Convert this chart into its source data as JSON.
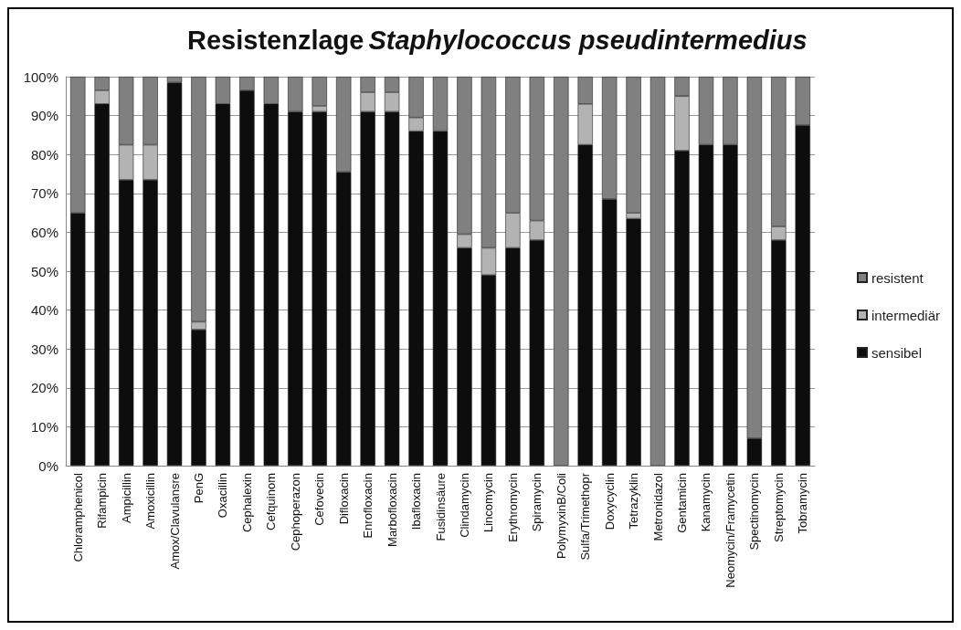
{
  "chart_data": {
    "type": "bar",
    "title": "Resistenzlage Staphylococcus pseudintermedius",
    "stacked": true,
    "categories": [
      "Chloramphenicol",
      "Rifampicin",
      "Ampicillin",
      "Amoxicillin",
      "Amox/Clavulansre",
      "PenG",
      "Oxacillin",
      "Cephalexin",
      "Cefquinom",
      "Cephoperazon",
      "Cefovecin",
      "Difloxacin",
      "Enrofloxacin",
      "Marbofloxacin",
      "Ibafloxacin",
      "Fusidinsäure",
      "Clindamycin",
      "Lincomycin",
      "Erythromycin",
      "Spiramycin",
      "PolymyxinB/Coli",
      "Sulfa/Trimethopr",
      "Doxycyclin",
      "Tetrazyklin",
      "Metronidazol",
      "Gentamicin",
      "Kanamycin",
      "Neomycin/Framycetin",
      "Spectinomycin",
      "Streptomycin",
      "Tobramycin"
    ],
    "series": [
      {
        "name": "sensibel",
        "color": "#0d0d0d",
        "values": [
          65,
          93,
          73.5,
          73.5,
          98.5,
          35,
          93,
          96.5,
          93,
          91,
          91,
          75.5,
          91,
          91,
          86,
          86,
          56,
          49,
          56,
          58,
          0,
          82.5,
          68.5,
          63.5,
          0,
          81,
          82.5,
          82.5,
          7,
          58,
          87.5
        ]
      },
      {
        "name": "intermediär",
        "color": "#b3b3b3",
        "values": [
          0,
          3.5,
          9,
          9,
          0,
          2,
          0,
          0,
          0,
          0,
          1.5,
          0,
          5,
          5,
          3.5,
          0,
          3.5,
          7,
          9,
          5,
          0,
          10.5,
          0,
          1.5,
          0,
          14,
          0,
          0,
          0,
          3.5,
          0
        ]
      },
      {
        "name": "resistent",
        "color": "#808080",
        "values": [
          35,
          3.5,
          17.5,
          17.5,
          1.5,
          63,
          7,
          3.5,
          7,
          9,
          7.5,
          24.5,
          4,
          4,
          10.5,
          14,
          40.5,
          44,
          35,
          37,
          100,
          7,
          31.5,
          35,
          100,
          5,
          17.5,
          17.5,
          93,
          38.5,
          12.5
        ]
      }
    ],
    "ylim": [
      0,
      100
    ],
    "yticks": [
      {
        "value": 0,
        "label": "0%"
      },
      {
        "value": 10,
        "label": "10%"
      },
      {
        "value": 20,
        "label": "20%"
      },
      {
        "value": 30,
        "label": "30%"
      },
      {
        "value": 40,
        "label": "40%"
      },
      {
        "value": 50,
        "label": "50%"
      },
      {
        "value": 60,
        "label": "60%"
      },
      {
        "value": 70,
        "label": "70%"
      },
      {
        "value": 80,
        "label": "80%"
      },
      {
        "value": 90,
        "label": "90%"
      },
      {
        "value": 100,
        "label": "100%"
      }
    ],
    "grid": "y",
    "legend": "right"
  }
}
